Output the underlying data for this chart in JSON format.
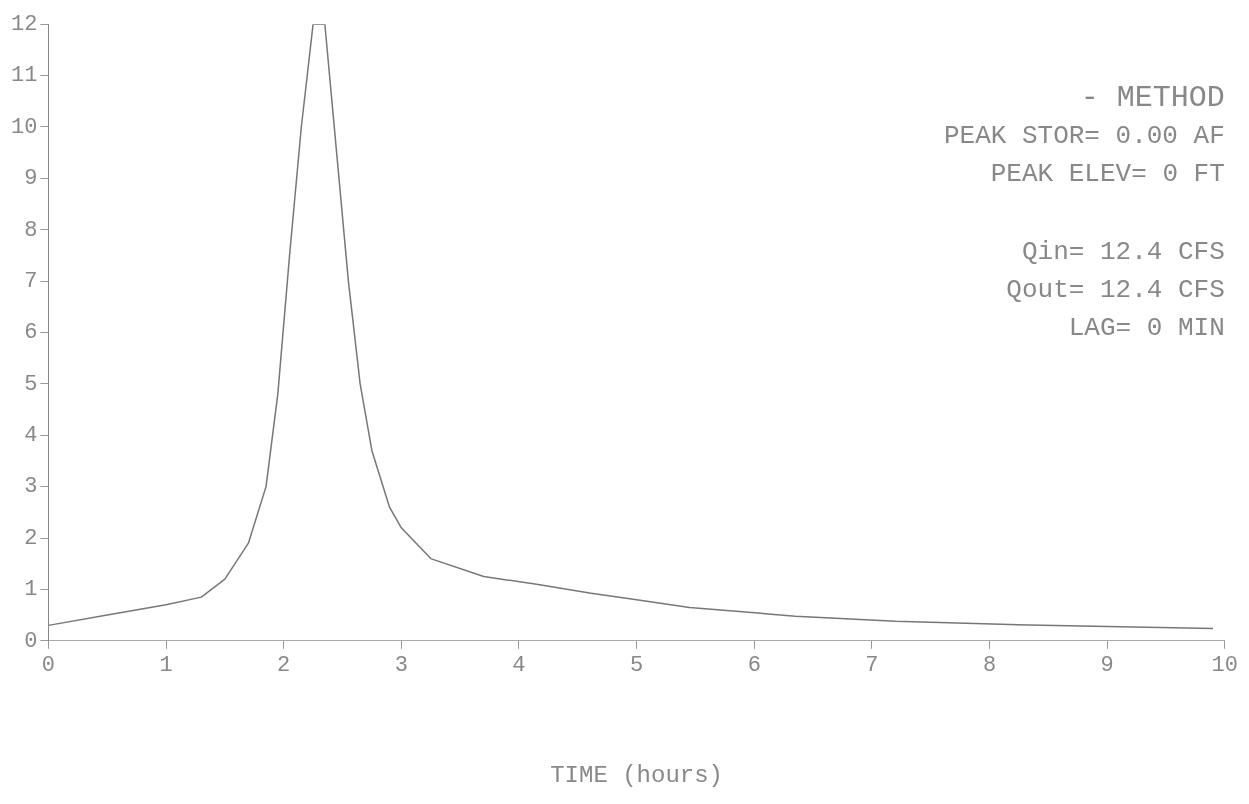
{
  "chart_data": {
    "type": "line",
    "xlabel": "TIME (hours)",
    "annotations": [
      "- METHOD",
      "PEAK STOR= 0.00 AF",
      "PEAK ELEV= 0 FT",
      "Qin= 12.4 CFS",
      "Qout= 12.4 CFS",
      "LAG= 0 MIN"
    ],
    "xlim": [
      0,
      10
    ],
    "xticks": [
      0,
      1,
      2,
      3,
      4,
      5,
      6,
      7,
      8,
      9,
      10
    ],
    "ylim": [
      0,
      12
    ],
    "yticks": [
      0,
      1,
      2,
      3,
      4,
      5,
      6,
      7,
      8,
      9,
      10,
      11,
      12
    ],
    "grid": false,
    "legend": false,
    "marker": "none",
    "line_style": "solid",
    "series": [
      {
        "color": "#777777",
        "x": [
          0,
          0.5,
          1,
          1.3,
          1.5,
          1.7,
          1.85,
          1.95,
          2.05,
          2.15,
          2.25,
          2.35,
          2.45,
          2.55,
          2.65,
          2.75,
          2.9,
          3,
          3.25,
          3.7,
          4.15,
          4.6,
          5,
          5.45,
          6.35,
          7.2,
          8.1,
          9,
          9.9
        ],
        "values": [
          0.3,
          0.5,
          0.7,
          0.85,
          1.2,
          1.9,
          3,
          4.8,
          7.5,
          10,
          12,
          12,
          9.5,
          7,
          5,
          3.7,
          2.6,
          2.2,
          1.6,
          1.25,
          1.1,
          0.93,
          0.8,
          0.65,
          0.48,
          0.38,
          0.32,
          0.28,
          0.24
        ]
      }
    ]
  }
}
